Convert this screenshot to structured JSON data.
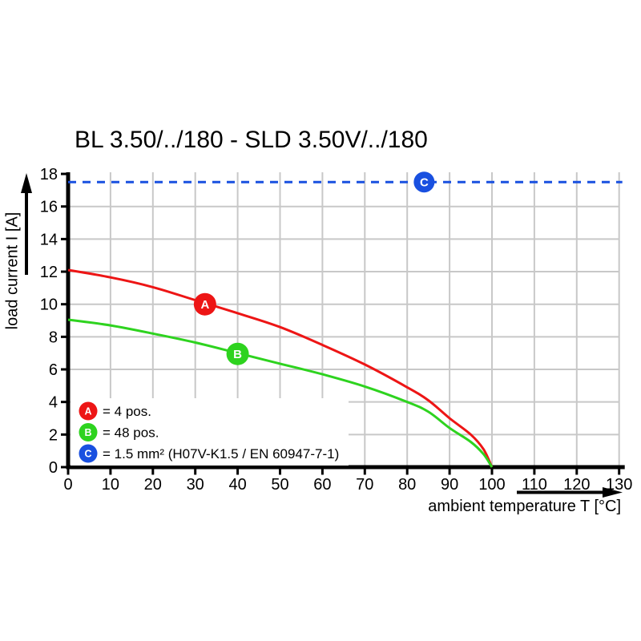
{
  "chart_data": {
    "type": "line",
    "title": "BL 3.50/../180 - SLD 3.50V/../180",
    "xlabel": "ambient temperature T [°C]",
    "ylabel": "load current I [A]",
    "xlim": [
      0,
      130
    ],
    "ylim": [
      0,
      18
    ],
    "xticks": [
      0,
      10,
      20,
      30,
      40,
      50,
      60,
      70,
      80,
      90,
      100,
      110,
      120,
      130
    ],
    "yticks": [
      0,
      2,
      4,
      6,
      8,
      10,
      12,
      14,
      16,
      18
    ],
    "grid": true,
    "grid_color": "#c8c8c8",
    "axis_color": "#000000",
    "legend_position": "inside-bottom-left",
    "series": [
      {
        "id": "A",
        "label": "= 4 pos.",
        "color": "#ed1515",
        "line_style": "solid",
        "marker": {
          "letter": "A",
          "x": 32.3,
          "y": 10.0
        },
        "points": [
          [
            0,
            12.1
          ],
          [
            10,
            11.65
          ],
          [
            20,
            11.05
          ],
          [
            30,
            10.25
          ],
          [
            40,
            9.45
          ],
          [
            50,
            8.6
          ],
          [
            60,
            7.5
          ],
          [
            70,
            6.3
          ],
          [
            80,
            4.9
          ],
          [
            85,
            4.1
          ],
          [
            90,
            3.0
          ],
          [
            95,
            2.0
          ],
          [
            98,
            1.1
          ],
          [
            100,
            0
          ]
        ]
      },
      {
        "id": "B",
        "label": "= 48 pos.",
        "color": "#2ed31f",
        "line_style": "solid",
        "marker": {
          "letter": "B",
          "x": 40,
          "y": 6.95
        },
        "points": [
          [
            0,
            9.05
          ],
          [
            10,
            8.7
          ],
          [
            20,
            8.2
          ],
          [
            30,
            7.65
          ],
          [
            40,
            7.0
          ],
          [
            50,
            6.35
          ],
          [
            60,
            5.7
          ],
          [
            70,
            4.95
          ],
          [
            80,
            4.0
          ],
          [
            85,
            3.4
          ],
          [
            90,
            2.4
          ],
          [
            95,
            1.55
          ],
          [
            98,
            0.8
          ],
          [
            100,
            0
          ]
        ]
      },
      {
        "id": "C",
        "label": "= 1.5 mm² (H07V-K1.5 / EN 60947-7-1)",
        "color": "#1950e0",
        "line_style": "dashed",
        "marker": {
          "letter": "C",
          "x": 84,
          "y": 17.5
        },
        "points": [
          [
            0,
            17.5
          ],
          [
            130,
            17.5
          ]
        ]
      }
    ]
  }
}
